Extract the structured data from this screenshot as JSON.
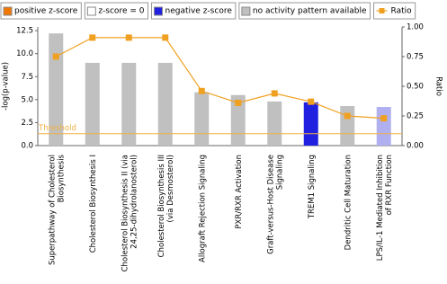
{
  "chart_data": {
    "type": "bar",
    "legend": [
      {
        "name": "positive z-score",
        "color": "#f07800"
      },
      {
        "name": "z-score = 0",
        "color": "#ffffff"
      },
      {
        "name": "negative z-score",
        "color": "#2020e0"
      },
      {
        "name": "no activity pattern available",
        "color": "#c0c0c0"
      }
    ],
    "categories": [
      "Superpathway of Cholesterol\nBiosynthesis",
      "Cholesterol Biosynthesis I",
      "Cholesterol Biosynthesis II (via\n24,25-dihydrolanosterol)",
      "Cholesterol Biosynthesis III\n(via Desmosterol)",
      "Allograft Rejection Signaling",
      "PXR/RXR Activation",
      "Graft-versus-Host Disease\nSignaling",
      "TREM1 Signaling",
      "Dendritic Cell Maturation",
      "LPS/IL-1 Mediated Inhibition\nof RXR Function"
    ],
    "values": [
      12.2,
      9.0,
      9.0,
      9.0,
      5.8,
      5.5,
      4.8,
      4.7,
      4.3,
      4.2
    ],
    "colors": [
      "#c0c0c0",
      "#c0c0c0",
      "#c0c0c0",
      "#c0c0c0",
      "#c0c0c0",
      "#c0c0c0",
      "#c0c0c0",
      "#2020e0",
      "#c0c0c0",
      "#b0b0f0"
    ],
    "ylabel": "-log(p-value)",
    "ylim": [
      0,
      12.9
    ],
    "yticks": [
      {
        "value": 0,
        "label": "0.0"
      },
      2.5,
      {
        "value": 5,
        "label": "5.0"
      },
      7.5,
      {
        "value": 10,
        "label": "10.0"
      },
      12.5
    ],
    "ratio": {
      "name": "Ratio",
      "color": "#f0a020",
      "axis": "y2",
      "values": [
        0.75,
        0.91,
        0.91,
        0.91,
        0.46,
        0.36,
        0.44,
        0.37,
        0.25,
        0.23
      ]
    },
    "y2label": "Ratio",
    "y2lim": [
      0,
      1
    ],
    "y2ticks": [
      {
        "value": 0,
        "label": "0.00"
      },
      {
        "value": 0.25,
        "label": "0.25"
      },
      {
        "value": 0.5,
        "label": "0.50"
      },
      {
        "value": 0.75,
        "label": "0.75"
      },
      {
        "value": 1,
        "label": "1.00"
      }
    ],
    "threshold": {
      "label": "Threshold",
      "value": 1.3,
      "color": "#f0b040"
    }
  }
}
